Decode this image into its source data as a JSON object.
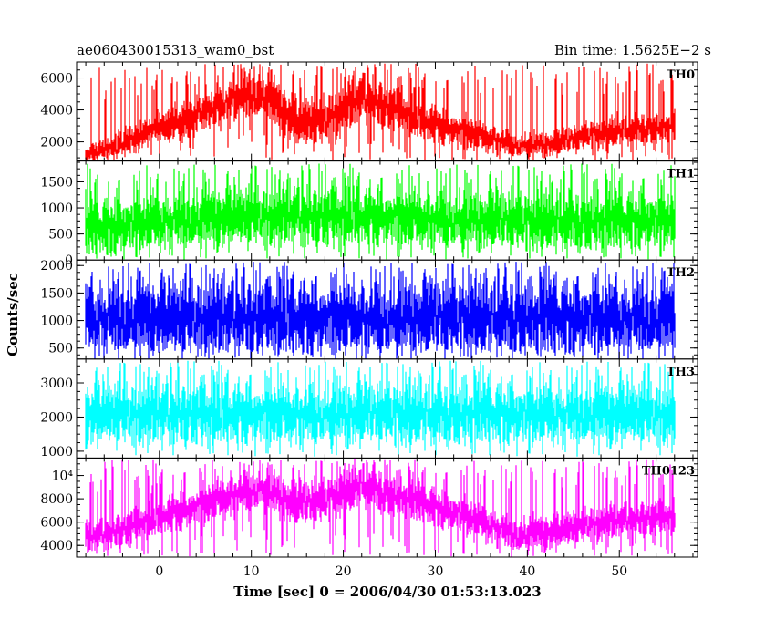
{
  "header": {
    "left_title": "ae060430015313_wam0_bst",
    "right_title": "Bin time: 1.5625E−2 s"
  },
  "chart_data": {
    "type": "line",
    "xlabel": "Time [sec] 0 = 2006/04/30 01:53:13.023",
    "ylabel": "Counts/sec",
    "xlim": [
      -9,
      58.5
    ],
    "xticks": [
      0,
      10,
      20,
      30,
      40,
      50
    ],
    "xtick_labels": [
      "0",
      "10",
      "20",
      "30",
      "40",
      "50"
    ],
    "x_start": -8,
    "x_end": 56,
    "bin_time": 0.015625,
    "grid": false,
    "panels": [
      {
        "name": "TH0",
        "color": "#ff0000",
        "ylim": [
          800,
          7000
        ],
        "yticks": [
          2000,
          4000,
          6000
        ],
        "ytick_labels": [
          "2000",
          "4000",
          "6000"
        ],
        "trend": [
          [
            -8,
            1200
          ],
          [
            -4,
            1900
          ],
          [
            0,
            2900
          ],
          [
            4,
            3600
          ],
          [
            8,
            4700
          ],
          [
            11,
            5100
          ],
          [
            15,
            3200
          ],
          [
            18,
            3400
          ],
          [
            22,
            4800
          ],
          [
            25,
            4200
          ],
          [
            30,
            3100
          ],
          [
            35,
            2400
          ],
          [
            39,
            1800
          ],
          [
            43,
            1900
          ],
          [
            47,
            2500
          ],
          [
            52,
            2800
          ],
          [
            56,
            3000
          ]
        ],
        "spread": [
          [
            -8,
            300
          ],
          [
            10,
            750
          ],
          [
            22,
            750
          ],
          [
            40,
            350
          ],
          [
            56,
            500
          ]
        ],
        "spike_max": 6900,
        "spike_min": 800
      },
      {
        "name": "TH1",
        "color": "#00ff00",
        "ylim": [
          0,
          1900
        ],
        "yticks": [
          0,
          500,
          1000,
          1500
        ],
        "ytick_labels": [
          "0",
          "500",
          "1000",
          "1500"
        ],
        "trend": [
          [
            -8,
            600
          ],
          [
            0,
            750
          ],
          [
            10,
            850
          ],
          [
            20,
            850
          ],
          [
            30,
            800
          ],
          [
            40,
            750
          ],
          [
            50,
            750
          ],
          [
            56,
            800
          ]
        ],
        "spread": [
          [
            -8,
            260
          ],
          [
            56,
            260
          ]
        ],
        "spike_max": 1850,
        "spike_min": 10
      },
      {
        "name": "TH2",
        "color": "#0000ff",
        "ylim": [
          300,
          2100
        ],
        "yticks": [
          500,
          1000,
          1500,
          2000
        ],
        "ytick_labels": [
          "500",
          "1000",
          "1500",
          "2000"
        ],
        "trend": [
          [
            -8,
            1050
          ],
          [
            56,
            1050
          ]
        ],
        "spread": [
          [
            -8,
            320
          ],
          [
            56,
            320
          ]
        ],
        "spike_max": 2070,
        "spike_min": 330
      },
      {
        "name": "TH3",
        "color": "#00ffff",
        "ylim": [
          800,
          3700
        ],
        "yticks": [
          1000,
          2000,
          3000
        ],
        "ytick_labels": [
          "1000",
          "2000",
          "3000"
        ],
        "trend": [
          [
            -8,
            2100
          ],
          [
            56,
            2100
          ]
        ],
        "spread": [
          [
            -8,
            420
          ],
          [
            56,
            420
          ]
        ],
        "spike_max": 3650,
        "spike_min": 850
      },
      {
        "name": "TH0123",
        "color": "#ff00ff",
        "ylim": [
          3000,
          11500
        ],
        "yticks": [
          4000,
          6000,
          8000,
          10000
        ],
        "ytick_labels": [
          "4000",
          "6000",
          "8000",
          "10⁴"
        ],
        "trend": [
          [
            -8,
            4600
          ],
          [
            -4,
            5400
          ],
          [
            0,
            6500
          ],
          [
            4,
            7300
          ],
          [
            8,
            8400
          ],
          [
            11,
            9000
          ],
          [
            15,
            7500
          ],
          [
            18,
            7900
          ],
          [
            22,
            9200
          ],
          [
            25,
            8400
          ],
          [
            30,
            7300
          ],
          [
            35,
            6100
          ],
          [
            39,
            4900
          ],
          [
            43,
            5200
          ],
          [
            47,
            5900
          ],
          [
            52,
            6300
          ],
          [
            56,
            6500
          ]
        ],
        "spread": [
          [
            -8,
            650
          ],
          [
            10,
            900
          ],
          [
            22,
            900
          ],
          [
            40,
            700
          ],
          [
            56,
            750
          ]
        ],
        "spike_max": 11400,
        "spike_min": 3050
      }
    ]
  }
}
